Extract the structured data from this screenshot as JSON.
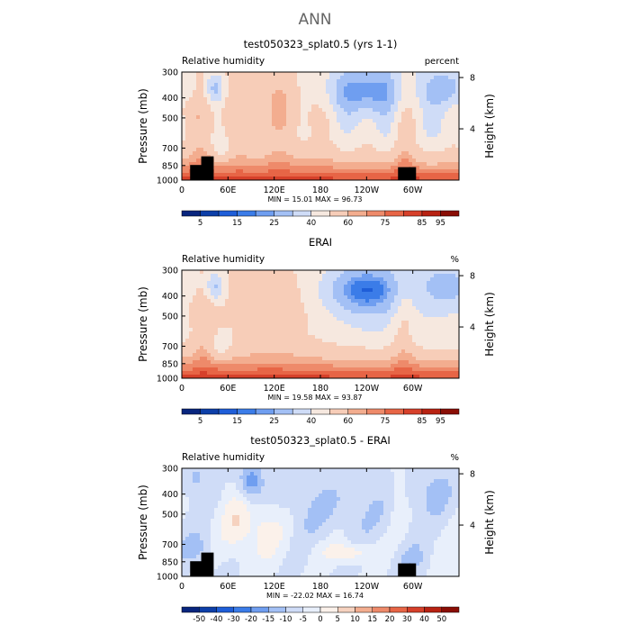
{
  "page_title": "ANN",
  "colors": {
    "black": "#000000",
    "rh_levels": [
      "#08257e",
      "#0d3fa8",
      "#1f5ed8",
      "#3b7ce8",
      "#6f9ef0",
      "#a3c0f5",
      "#cfdcf7",
      "#f6e8df",
      "#f7cdb8",
      "#f3ad8f",
      "#ee8a6a",
      "#e76546",
      "#d6402a",
      "#b82212",
      "#8a0e05"
    ],
    "diff_levels": [
      "#08257e",
      "#0d3fa8",
      "#1f5ed8",
      "#3b7ce8",
      "#6f9ef0",
      "#a3c0f5",
      "#cfdcf7",
      "#e8effb",
      "#fbf1ea",
      "#f6d2bf",
      "#f3ad8f",
      "#ee8a6a",
      "#e76546",
      "#d6402a",
      "#b82212",
      "#8a0e05"
    ]
  },
  "chart_data": [
    {
      "type": "heatmap",
      "title": "test050323_splat0.5 (yrs 1-1)",
      "left_label": "Relative humidity",
      "right_label": "percent",
      "ylabel": "Pressure (mb)",
      "y2label": "Height (km)",
      "x_ticks": [
        "0",
        "60E",
        "120E",
        "180",
        "120W",
        "60W"
      ],
      "y_ticks": [
        "300",
        "400",
        "500",
        "700",
        "850",
        "1000"
      ],
      "y2_ticks": [
        "8",
        "4"
      ],
      "stats": "MIN =   15.01   MAX =   96.73",
      "colorbar_labels": [
        "5",
        "15",
        "25",
        "40",
        "60",
        "75",
        "85",
        "95"
      ],
      "topography_masked": true
    },
    {
      "type": "heatmap",
      "title": "ERAI",
      "left_label": "Relative humidity",
      "right_label": "%",
      "ylabel": "Pressure (mb)",
      "y2label": "Height (km)",
      "x_ticks": [
        "0",
        "60E",
        "120E",
        "180",
        "120W",
        "60W"
      ],
      "y_ticks": [
        "300",
        "400",
        "500",
        "700",
        "850",
        "1000"
      ],
      "y2_ticks": [
        "8",
        "4"
      ],
      "stats": "MIN =   19.58   MAX =   93.87",
      "colorbar_labels": [
        "5",
        "15",
        "25",
        "40",
        "60",
        "75",
        "85",
        "95"
      ],
      "topography_masked": false
    },
    {
      "type": "heatmap",
      "title": "test050323_splat0.5 - ERAI",
      "left_label": "Relative humidity",
      "right_label": "%",
      "ylabel": "Pressure (mb)",
      "y2label": "Height (km)",
      "x_ticks": [
        "0",
        "60E",
        "120E",
        "180",
        "120W",
        "60W"
      ],
      "y_ticks": [
        "300",
        "400",
        "500",
        "700",
        "850",
        "1000"
      ],
      "y2_ticks": [
        "8",
        "4"
      ],
      "stats": "MIN =  -22.02   MAX =   16.74",
      "colorbar_labels": [
        "-50",
        "-40",
        "-30",
        "-20",
        "-15",
        "-10",
        "-5",
        "0",
        "5",
        "10",
        "15",
        "20",
        "30",
        "40",
        "50"
      ],
      "topography_masked": true
    }
  ]
}
